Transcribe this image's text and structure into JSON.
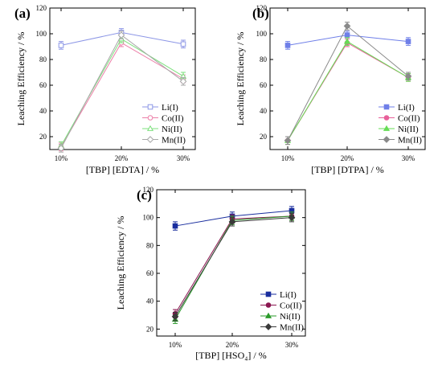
{
  "chart_data": [
    {
      "type": "line",
      "panel_label": "(a)",
      "categories": [
        "10%",
        "20%",
        "30%"
      ],
      "xlabel": "[TBP] [EDTA] / %",
      "ylabel": "Leaching Efficiency / %",
      "ylim": [
        10,
        120
      ],
      "yticks": [
        "20",
        "40",
        "60",
        "80",
        "100",
        "120"
      ],
      "grid": false,
      "legend_position": "bottom-right",
      "marker_style": "open",
      "series": [
        {
          "name": "Li(I)",
          "color": "#8c96e6",
          "marker": "square",
          "values": [
            91,
            101,
            92
          ],
          "errors": [
            3,
            3,
            3
          ]
        },
        {
          "name": "Co(II)",
          "color": "#ec7fa8",
          "marker": "circle",
          "values": [
            12,
            93,
            65
          ],
          "errors": [
            3,
            3,
            3
          ]
        },
        {
          "name": "Ni(II)",
          "color": "#7de07d",
          "marker": "triangle",
          "values": [
            13,
            96,
            67
          ],
          "errors": [
            3,
            3,
            3
          ]
        },
        {
          "name": "Mn(II)",
          "color": "#a8a8a8",
          "marker": "diamond",
          "values": [
            11,
            99,
            63
          ],
          "errors": [
            3,
            3,
            3
          ]
        }
      ]
    },
    {
      "type": "line",
      "panel_label": "(b)",
      "categories": [
        "10%",
        "20%",
        "30%"
      ],
      "xlabel": "[TBP] [DTPA] / %",
      "ylabel": "Leaching Efficiency / %",
      "ylim": [
        10,
        120
      ],
      "yticks": [
        "20",
        "40",
        "60",
        "80",
        "100",
        "120"
      ],
      "grid": false,
      "legend_position": "bottom-right",
      "marker_style": "filled",
      "series": [
        {
          "name": "Li(I)",
          "color": "#6f7fe8",
          "marker": "square",
          "values": [
            91,
            99,
            94
          ],
          "errors": [
            3,
            3,
            3
          ]
        },
        {
          "name": "Co(II)",
          "color": "#e8609a",
          "marker": "circle",
          "values": [
            17,
            93,
            66
          ],
          "errors": [
            3,
            3,
            3
          ]
        },
        {
          "name": "Ni(II)",
          "color": "#66dd55",
          "marker": "triangle",
          "values": [
            17,
            94,
            66
          ],
          "errors": [
            3,
            3,
            3
          ]
        },
        {
          "name": "Mn(II)",
          "color": "#8a8a8a",
          "marker": "diamond",
          "values": [
            17,
            106,
            67
          ],
          "errors": [
            3,
            3,
            3
          ]
        }
      ]
    },
    {
      "type": "line",
      "panel_label": "(c)",
      "categories": [
        "10%",
        "20%",
        "30%"
      ],
      "xlabel": "[TBP] [HSO₄] / %",
      "ylabel": "Leaching Efficiency / %",
      "ylim": [
        15,
        120
      ],
      "yticks": [
        "20",
        "40",
        "60",
        "80",
        "100",
        "120"
      ],
      "grid": false,
      "legend_position": "bottom-right",
      "marker_style": "filled",
      "series": [
        {
          "name": "Li(I)",
          "color": "#1a2e9e",
          "marker": "square",
          "values": [
            94,
            101,
            105
          ],
          "errors": [
            3,
            3,
            3
          ]
        },
        {
          "name": "Co(II)",
          "color": "#8a1650",
          "marker": "circle",
          "values": [
            31,
            99,
            101
          ],
          "errors": [
            3,
            3,
            3
          ]
        },
        {
          "name": "Ni(II)",
          "color": "#2a9a2a",
          "marker": "triangle",
          "values": [
            27,
            98,
            101
          ],
          "errors": [
            3,
            3,
            3
          ]
        },
        {
          "name": "Mn(II)",
          "color": "#3a3a3a",
          "marker": "diamond",
          "values": [
            29,
            97,
            100
          ],
          "errors": [
            3,
            3,
            3
          ]
        }
      ]
    }
  ]
}
